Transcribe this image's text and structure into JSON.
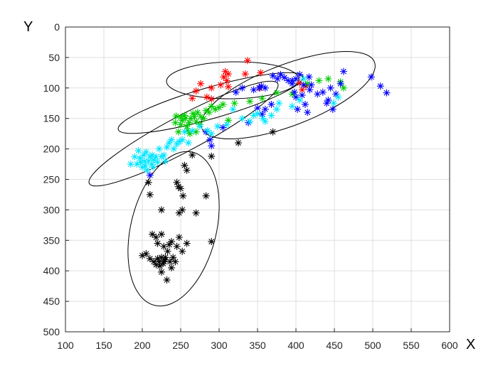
{
  "chart_data": {
    "type": "scatter",
    "title": "",
    "xlabel": "X",
    "ylabel": "Y",
    "xlim": [
      100,
      600
    ],
    "ylim": [
      0,
      500
    ],
    "y_reversed": true,
    "grid": true,
    "marker": "asterisk",
    "x_ticks": [
      "100",
      "150",
      "200",
      "250",
      "300",
      "350",
      "400",
      "450",
      "500",
      "550",
      "600"
    ],
    "y_ticks": [
      "0",
      "50",
      "100",
      "150",
      "200",
      "250",
      "300",
      "350",
      "400",
      "450",
      "500"
    ],
    "series": [
      {
        "color": "#ff0000",
        "points": [
          [
            337,
            55
          ],
          [
            354,
            75
          ],
          [
            334,
            77
          ],
          [
            308,
            73
          ],
          [
            312,
            77
          ],
          [
            306,
            82
          ],
          [
            310,
            88
          ],
          [
            302,
            95
          ],
          [
            290,
            100
          ],
          [
            276,
            93
          ],
          [
            270,
            105
          ],
          [
            284,
            115
          ],
          [
            265,
            117
          ],
          [
            290,
            118
          ],
          [
            312,
            98
          ],
          [
            353,
            100
          ],
          [
            405,
            92
          ],
          [
            413,
            97
          ],
          [
            408,
            103
          ]
        ]
      },
      {
        "color": "#00cc00",
        "points": [
          [
            243,
            157
          ],
          [
            247,
            172
          ],
          [
            250,
            160
          ],
          [
            252,
            153
          ],
          [
            255,
            145
          ],
          [
            256,
            150
          ],
          [
            258,
            163
          ],
          [
            261,
            157
          ],
          [
            263,
            150
          ],
          [
            266,
            142
          ],
          [
            268,
            147
          ],
          [
            270,
            155
          ],
          [
            272,
            140
          ],
          [
            276,
            147
          ],
          [
            280,
            150
          ],
          [
            283,
            137
          ],
          [
            287,
            140
          ],
          [
            262,
            175
          ],
          [
            270,
            172
          ],
          [
            275,
            160
          ],
          [
            290,
            130
          ],
          [
            295,
            135
          ],
          [
            300,
            132
          ],
          [
            305,
            127
          ],
          [
            312,
            153
          ],
          [
            320,
            125
          ],
          [
            340,
            122
          ],
          [
            356,
            117
          ],
          [
            375,
            108
          ],
          [
            395,
            110
          ],
          [
            415,
            93
          ],
          [
            430,
            88
          ],
          [
            442,
            85
          ],
          [
            458,
            90
          ],
          [
            462,
            100
          ],
          [
            244,
            146
          ],
          [
            250,
            148
          ],
          [
            259,
            170
          ]
        ]
      },
      {
        "color": "#0000ff",
        "points": [
          [
            210,
            243
          ],
          [
            283,
            172
          ],
          [
            288,
            185
          ],
          [
            290,
            195
          ],
          [
            305,
            165
          ],
          [
            322,
            107
          ],
          [
            330,
            100
          ],
          [
            338,
            157
          ],
          [
            345,
            103
          ],
          [
            352,
            100
          ],
          [
            355,
            97
          ],
          [
            350,
            133
          ],
          [
            356,
            143
          ],
          [
            360,
            135
          ],
          [
            368,
            127
          ],
          [
            370,
            80
          ],
          [
            376,
            85
          ],
          [
            380,
            78
          ],
          [
            385,
            83
          ],
          [
            390,
            88
          ],
          [
            395,
            93
          ],
          [
            398,
            107
          ],
          [
            400,
            115
          ],
          [
            402,
            135
          ],
          [
            405,
            78
          ],
          [
            408,
            112
          ],
          [
            410,
            95
          ],
          [
            412,
            127
          ],
          [
            415,
            140
          ],
          [
            418,
            103
          ],
          [
            420,
            95
          ],
          [
            428,
            110
          ],
          [
            435,
            107
          ],
          [
            440,
            125
          ],
          [
            442,
            120
          ],
          [
            445,
            100
          ],
          [
            448,
            135
          ],
          [
            452,
            110
          ],
          [
            458,
            93
          ],
          [
            462,
            73
          ],
          [
            498,
            82
          ],
          [
            510,
            97
          ],
          [
            518,
            108
          ],
          [
            395,
            88
          ],
          [
            400,
            85
          ],
          [
            417,
            82
          ],
          [
            360,
            100
          ]
        ]
      },
      {
        "color": "#00e5ff",
        "points": [
          [
            185,
            225
          ],
          [
            190,
            213
          ],
          [
            193,
            225
          ],
          [
            195,
            203
          ],
          [
            197,
            215
          ],
          [
            200,
            230
          ],
          [
            202,
            210
          ],
          [
            203,
            220
          ],
          [
            205,
            205
          ],
          [
            206,
            235
          ],
          [
            208,
            220
          ],
          [
            210,
            213
          ],
          [
            212,
            225
          ],
          [
            213,
            210
          ],
          [
            215,
            218
          ],
          [
            218,
            213
          ],
          [
            220,
            222
          ],
          [
            222,
            200
          ],
          [
            225,
            213
          ],
          [
            228,
            210
          ],
          [
            230,
            220
          ],
          [
            232,
            197
          ],
          [
            235,
            190
          ],
          [
            238,
            185
          ],
          [
            241,
            200
          ],
          [
            245,
            192
          ],
          [
            248,
            188
          ],
          [
            252,
            185
          ],
          [
            255,
            172
          ],
          [
            260,
            190
          ],
          [
            265,
            170
          ],
          [
            275,
            163
          ],
          [
            285,
            170
          ],
          [
            290,
            175
          ],
          [
            298,
            163
          ],
          [
            310,
            160
          ],
          [
            318,
            135
          ],
          [
            330,
            150
          ],
          [
            340,
            155
          ],
          [
            345,
            145
          ],
          [
            350,
            142
          ],
          [
            357,
            150
          ],
          [
            360,
            155
          ],
          [
            368,
            145
          ],
          [
            375,
            135
          ],
          [
            378,
            125
          ],
          [
            395,
            130
          ],
          [
            410,
            85
          ],
          [
            449,
            125
          ],
          [
            455,
            115
          ],
          [
            405,
            120
          ],
          [
            198,
            222
          ],
          [
            204,
            228
          ],
          [
            214,
            230
          ]
        ]
      },
      {
        "color": "#000000",
        "points": [
          [
            208,
            255
          ],
          [
            210,
            275
          ],
          [
            245,
            255
          ],
          [
            247,
            262
          ],
          [
            250,
            265
          ],
          [
            253,
            277
          ],
          [
            255,
            227
          ],
          [
            258,
            235
          ],
          [
            265,
            210
          ],
          [
            283,
            277
          ],
          [
            290,
            212
          ],
          [
            270,
            305
          ],
          [
            252,
            300
          ],
          [
            248,
            305
          ],
          [
            225,
            300
          ],
          [
            213,
            340
          ],
          [
            218,
            345
          ],
          [
            220,
            355
          ],
          [
            225,
            340
          ],
          [
            228,
            360
          ],
          [
            230,
            378
          ],
          [
            233,
            368
          ],
          [
            235,
            357
          ],
          [
            238,
            352
          ],
          [
            240,
            378
          ],
          [
            243,
            385
          ],
          [
            245,
            360
          ],
          [
            248,
            345
          ],
          [
            252,
            368
          ],
          [
            258,
            355
          ],
          [
            290,
            352
          ],
          [
            200,
            375
          ],
          [
            205,
            372
          ],
          [
            210,
            380
          ],
          [
            215,
            385
          ],
          [
            218,
            390
          ],
          [
            220,
            380
          ],
          [
            222,
            385
          ],
          [
            223,
            392
          ],
          [
            225,
            402
          ],
          [
            227,
            388
          ],
          [
            230,
            382
          ],
          [
            232,
            415
          ],
          [
            236,
            385
          ],
          [
            238,
            395
          ],
          [
            325,
            190
          ],
          [
            370,
            172
          ],
          [
            225,
            378
          ],
          [
            228,
            385
          ]
        ]
      }
    ]
  }
}
